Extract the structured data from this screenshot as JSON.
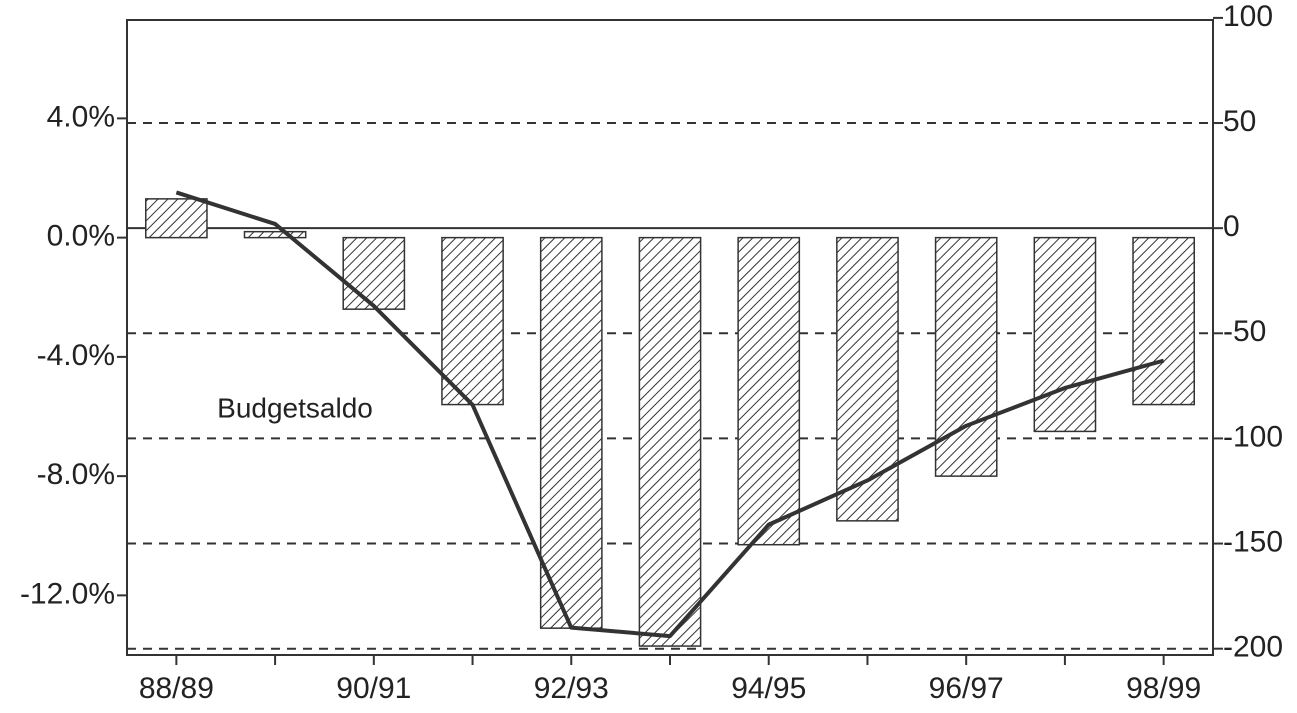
{
  "chart_data": {
    "type": "bar-line",
    "annotation": "Budgetsaldo",
    "categories": [
      "88/89",
      null,
      "90/91",
      null,
      "92/93",
      null,
      "94/95",
      null,
      "96/97",
      null,
      "98/99"
    ],
    "series": [
      {
        "type": "bar",
        "color": "#333333",
        "hatch": true,
        "values": [
          1.3,
          0.2,
          -2.4,
          -5.6,
          -13.1,
          -13.7,
          -10.3,
          -9.5,
          -8.0,
          -6.5,
          -5.6
        ]
      },
      {
        "type": "line",
        "axis": "y2",
        "color": "#333333",
        "values": [
          17,
          2,
          -37,
          -84,
          -190,
          -194,
          -141,
          -120,
          -94,
          -76,
          -63
        ]
      }
    ],
    "ylim": [
      -14,
      7.3
    ],
    "yticks": [
      {
        "value": 4,
        "label": "4.0%"
      },
      {
        "value": 0,
        "label": "0.0%"
      },
      {
        "value": -4,
        "label": "-4.0%"
      },
      {
        "value": -8,
        "label": "-8.0%"
      },
      {
        "value": -12,
        "label": "-12.0%"
      }
    ],
    "y2lim": [
      -203,
      99
    ],
    "y2ticks": [
      100,
      50,
      0,
      -50,
      -100,
      -150,
      -200
    ],
    "grid": true
  }
}
